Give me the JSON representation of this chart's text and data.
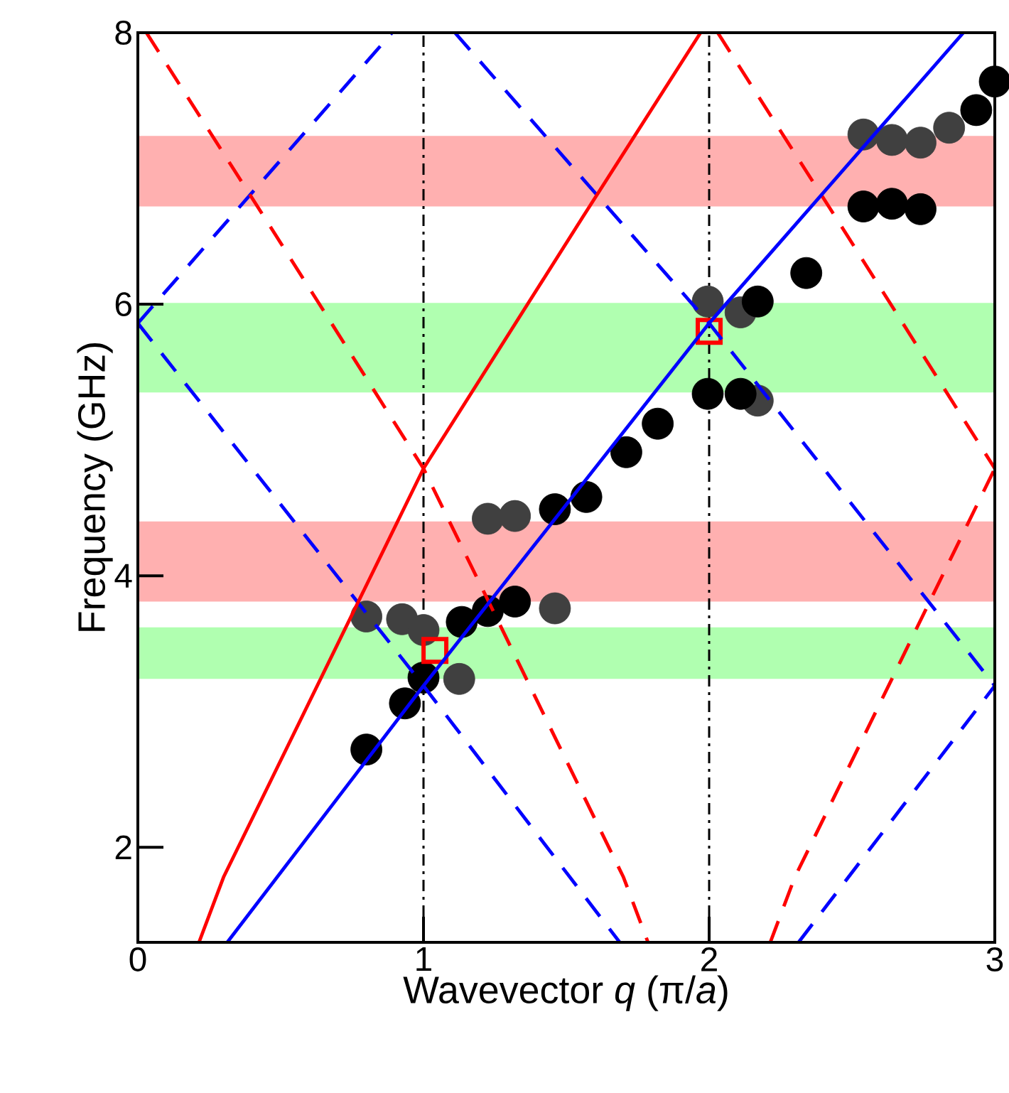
{
  "chart_data": {
    "type": "line",
    "xlabel": "Wavevector *q*  (π/*a*)",
    "ylabel": "Frequency (GHz)",
    "xlim": [
      0,
      3
    ],
    "ylim": [
      1.3,
      8
    ],
    "xticks": [
      0,
      1,
      2,
      3
    ],
    "yticks": [
      2,
      4,
      6,
      8
    ],
    "bands": [
      {
        "axis": "y",
        "from": 6.72,
        "to": 7.24,
        "color": "#ffb0b0"
      },
      {
        "axis": "y",
        "from": 5.35,
        "to": 6.01,
        "color": "#b0ffb0"
      },
      {
        "axis": "y",
        "from": 3.81,
        "to": 4.4,
        "color": "#ffb0b0"
      },
      {
        "axis": "y",
        "from": 3.24,
        "to": 3.62,
        "color": "#b0ffb0"
      }
    ],
    "ref_lines": [
      {
        "axis": "x",
        "value": 1,
        "color": "#000000",
        "line_style": "dashdot"
      },
      {
        "axis": "x",
        "value": 2,
        "color": "#000000",
        "line_style": "dashdot"
      }
    ],
    "series": [
      {
        "type": "scatter",
        "color": "#404040",
        "marker": "circle",
        "x": [
          0.8,
          0.925,
          1.0,
          1.125,
          1.225,
          1.32,
          1.46,
          1.995,
          2.11,
          2.17,
          2.54,
          2.64,
          2.74,
          2.84
        ],
        "values": [
          3.7,
          3.68,
          3.6,
          3.24,
          4.42,
          4.44,
          3.76,
          6.02,
          5.94,
          5.29,
          7.25,
          7.21,
          7.19,
          7.3
        ]
      },
      {
        "type": "scatter",
        "color": "#000000",
        "marker": "circle",
        "x": [
          0.8,
          0.935,
          1.0,
          1.134,
          1.225,
          1.32,
          1.46,
          1.57,
          1.71,
          1.82,
          1.995,
          2.11,
          2.17,
          2.34,
          2.54,
          2.64,
          2.74,
          2.935,
          3.0
        ],
        "values": [
          2.72,
          3.06,
          3.25,
          3.66,
          3.74,
          3.81,
          4.49,
          4.58,
          4.91,
          5.12,
          5.34,
          5.34,
          6.02,
          6.23,
          6.72,
          6.74,
          6.7,
          7.43,
          7.64
        ]
      },
      {
        "type": "scatter",
        "color": "#ff0000",
        "marker": "square",
        "x": [
          1.04,
          2.0
        ],
        "values": [
          3.45,
          5.8
        ]
      },
      {
        "type": "line",
        "color": "#0000ff",
        "line_style": "dashed",
        "x": [
          0,
          1,
          1.687
        ],
        "values": [
          5.86,
          3.19,
          1.3
        ]
      },
      {
        "color": "#0000ff",
        "line_style": "dashed",
        "x": [
          0,
          0.89
        ],
        "values": [
          5.86,
          8
        ]
      },
      {
        "color": "#0000ff",
        "line_style": "dashed",
        "x": [
          1.11,
          2,
          3
        ],
        "values": [
          8,
          5.86,
          3.19
        ]
      },
      {
        "color": "#0000ff",
        "line_style": "dashed",
        "x": [
          2.313,
          3
        ],
        "values": [
          1.3,
          3.19
        ]
      },
      {
        "color": "#ff0000",
        "line_style": "dashed",
        "x": [
          0.03,
          0.443,
          1,
          1.537,
          1.7,
          1.786
        ],
        "values": [
          8,
          6.64,
          4.79,
          2.48,
          1.78,
          1.3
        ]
      },
      {
        "color": "#ff0000",
        "line_style": "dashed",
        "x": [
          2.03,
          2.443,
          3
        ],
        "values": [
          8,
          6.64,
          4.79
        ]
      },
      {
        "color": "#ff0000",
        "line_style": "dashed",
        "x": [
          2.214,
          2.3,
          2.463,
          3
        ],
        "values": [
          1.3,
          1.78,
          2.48,
          4.79
        ]
      },
      {
        "color": "#ff0000",
        "line_style": "solid",
        "x": [
          0.214,
          0.3,
          0.463,
          1,
          1.557,
          1.97
        ],
        "values": [
          1.3,
          1.78,
          2.48,
          4.79,
          6.64,
          8
        ]
      },
      {
        "color": "#0000ff",
        "line_style": "solid",
        "x": [
          0.313,
          1,
          2,
          2.89
        ],
        "values": [
          1.3,
          3.19,
          5.86,
          8
        ]
      }
    ]
  }
}
